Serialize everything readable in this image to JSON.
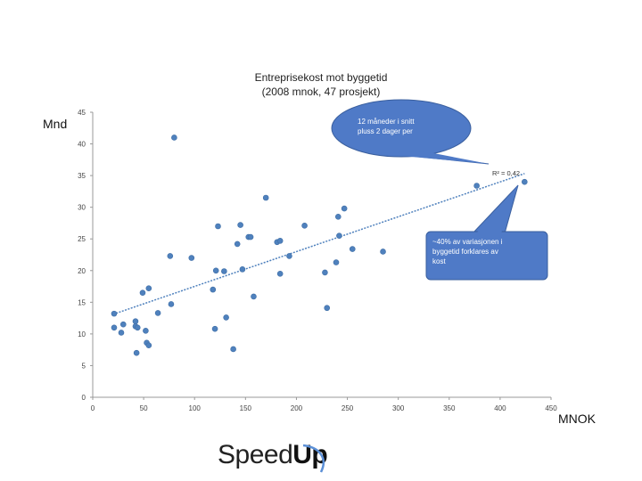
{
  "slide": {
    "title_line1": "Entreprisekost mot byggetid",
    "title_line2": "(2008 mnok, 47 prosjekt)",
    "y_unit": "Mnd",
    "x_unit": "MNOK",
    "logo": {
      "left": "Speed",
      "right": "Up"
    }
  },
  "callouts": [
    {
      "text": [
        "12 måneder i snitt",
        "pluss 2 dager per"
      ]
    },
    {
      "text": [
        "~40% av variasjonen i",
        "byggetid forklares av",
        "kost"
      ]
    }
  ],
  "colors": {
    "marker": "#4f81bd",
    "trend": "#4f81bd",
    "callout_fill": "#4f7ac7",
    "callout_stroke": "#3a5f9e"
  },
  "chart_data": {
    "type": "scatter",
    "xlim": [
      0,
      450
    ],
    "ylim": [
      0,
      45
    ],
    "xticks": [
      0,
      50,
      100,
      150,
      200,
      250,
      300,
      350,
      400,
      450
    ],
    "yticks": [
      0,
      5,
      10,
      15,
      20,
      25,
      30,
      35,
      40,
      45
    ],
    "grid": false,
    "r2_label": "R² = 0,42",
    "trendline": {
      "intercept": 12.0,
      "slope": 0.055
    },
    "x": [
      80,
      21,
      21,
      28,
      30,
      42,
      42,
      43,
      44,
      49,
      52,
      53,
      55,
      55,
      64,
      76,
      77,
      97,
      118,
      120,
      121,
      123,
      129,
      131,
      138,
      142,
      145,
      147,
      153,
      155,
      158,
      170,
      181,
      184,
      184,
      193,
      208,
      228,
      230,
      239,
      241,
      242,
      247,
      255,
      285,
      377,
      424
    ],
    "y": [
      41.0,
      13.2,
      11.0,
      10.2,
      11.5,
      11.2,
      12.0,
      7.0,
      11.0,
      16.5,
      10.5,
      8.6,
      8.2,
      17.2,
      13.3,
      22.3,
      14.7,
      22.0,
      17.0,
      10.8,
      20.0,
      27.0,
      19.9,
      12.6,
      7.6,
      24.2,
      27.2,
      20.2,
      25.3,
      25.3,
      15.9,
      31.5,
      24.5,
      24.7,
      19.5,
      22.3,
      27.1,
      19.7,
      14.1,
      21.3,
      28.5,
      25.5,
      29.8,
      23.4,
      23.0,
      33.4,
      34.0
    ]
  }
}
